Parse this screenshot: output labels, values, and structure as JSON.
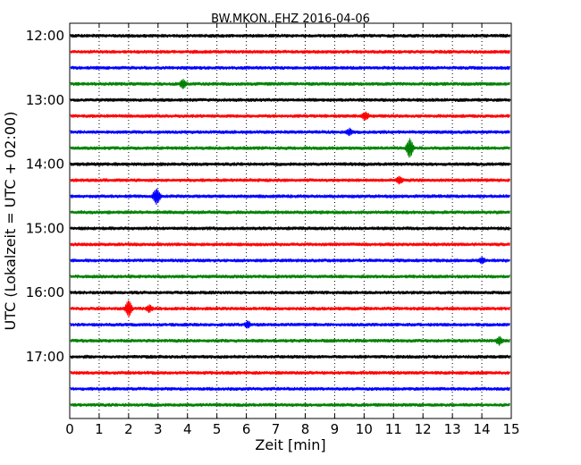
{
  "chart_data": {
    "type": "line",
    "title": "BW.MKON..EHZ 2016-04-06",
    "xlabel": "Zeit  [min]",
    "ylabel": "UTC (Lokalzeit = UTC + 02:00)",
    "xlim": [
      0,
      15
    ],
    "x_ticks": [
      0,
      1,
      2,
      3,
      4,
      5,
      6,
      7,
      8,
      9,
      10,
      11,
      12,
      13,
      14,
      15
    ],
    "x_tick_labels": [
      "0",
      "1",
      "2",
      "3",
      "4",
      "5",
      "6",
      "7",
      "8",
      "9",
      "10",
      "11",
      "12",
      "13",
      "14",
      "15"
    ],
    "grid": "vertical dotted",
    "y_tick_labels": [
      "12:00",
      "13:00",
      "14:00",
      "15:00",
      "16:00",
      "17:00"
    ],
    "trace_interval_min": 15,
    "colors": [
      "#000000",
      "#ff0000",
      "#0000ff",
      "#008000"
    ],
    "series": [
      {
        "start": "12:00",
        "color": "#000000",
        "events": []
      },
      {
        "start": "12:15",
        "color": "#ff0000",
        "events": []
      },
      {
        "start": "12:30",
        "color": "#0000ff",
        "events": []
      },
      {
        "start": "12:45",
        "color": "#008000",
        "events": [
          {
            "x": 3.85,
            "amp": 5
          }
        ]
      },
      {
        "start": "13:00",
        "color": "#000000",
        "events": []
      },
      {
        "start": "13:15",
        "color": "#ff0000",
        "events": [
          {
            "x": 10.05,
            "amp": 5
          }
        ]
      },
      {
        "start": "13:30",
        "color": "#0000ff",
        "events": [
          {
            "x": 9.5,
            "amp": 4
          }
        ]
      },
      {
        "start": "13:45",
        "color": "#008000",
        "events": [
          {
            "x": 11.55,
            "amp": 11
          }
        ]
      },
      {
        "start": "14:00",
        "color": "#000000",
        "events": []
      },
      {
        "start": "14:15",
        "color": "#ff0000",
        "events": [
          {
            "x": 11.2,
            "amp": 4
          }
        ]
      },
      {
        "start": "14:30",
        "color": "#0000ff",
        "events": [
          {
            "x": 2.95,
            "amp": 9
          }
        ]
      },
      {
        "start": "14:45",
        "color": "#008000",
        "events": []
      },
      {
        "start": "15:00",
        "color": "#000000",
        "events": []
      },
      {
        "start": "15:15",
        "color": "#ff0000",
        "events": []
      },
      {
        "start": "15:30",
        "color": "#0000ff",
        "events": [
          {
            "x": 14.0,
            "amp": 4
          }
        ]
      },
      {
        "start": "15:45",
        "color": "#008000",
        "events": []
      },
      {
        "start": "16:00",
        "color": "#000000",
        "events": []
      },
      {
        "start": "16:15",
        "color": "#ff0000",
        "events": [
          {
            "x": 2.0,
            "amp": 9
          },
          {
            "x": 2.7,
            "amp": 4
          }
        ]
      },
      {
        "start": "16:30",
        "color": "#0000ff",
        "events": [
          {
            "x": 6.05,
            "amp": 4
          }
        ]
      },
      {
        "start": "16:45",
        "color": "#008000",
        "events": [
          {
            "x": 14.6,
            "amp": 5
          }
        ]
      },
      {
        "start": "17:00",
        "color": "#000000",
        "events": []
      },
      {
        "start": "17:15",
        "color": "#ff0000",
        "events": []
      },
      {
        "start": "17:30",
        "color": "#0000ff",
        "events": []
      },
      {
        "start": "17:45",
        "color": "#008000",
        "events": []
      }
    ]
  }
}
